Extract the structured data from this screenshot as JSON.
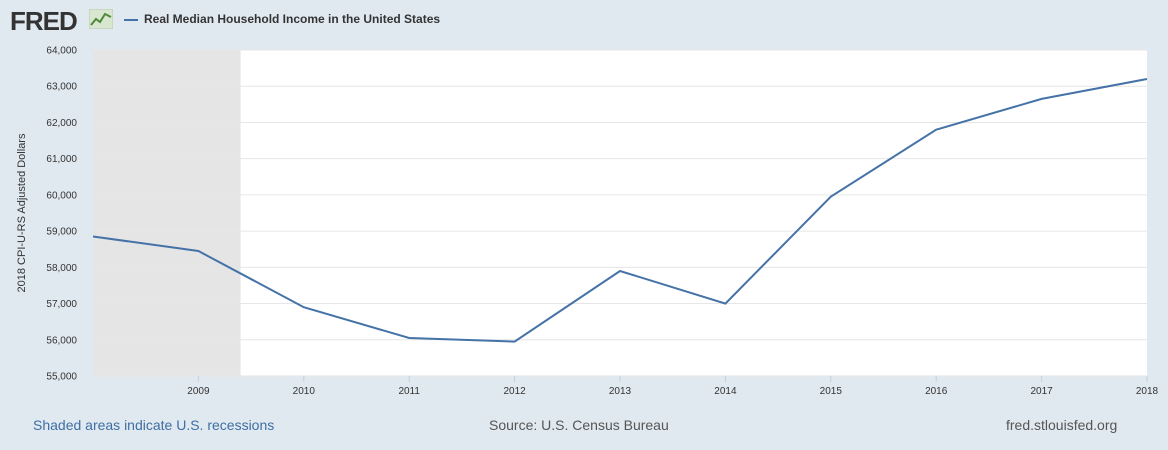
{
  "header": {
    "logo_text": "FRED",
    "legend_label": "Real Median Household Income in the United States"
  },
  "footer": {
    "recession_note": "Shaded areas indicate U.S. recessions",
    "source": "Source: U.S. Census Bureau",
    "site": "fred.stlouisfed.org"
  },
  "colors": {
    "page_background": "#e1e9f0",
    "plot_background": "#ffffff",
    "recession_shade": "#e5e5e5",
    "series_line": "#4572a7",
    "gridline": "#e6e6e6"
  },
  "chart_data": {
    "type": "line",
    "title": "",
    "xlabel": "",
    "ylabel": "2018 CPI-U-RS Adjusted Dollars",
    "xlim": [
      2008,
      2018
    ],
    "ylim": [
      55000,
      64000
    ],
    "grid": true,
    "x_ticks": [
      2009,
      2010,
      2011,
      2012,
      2013,
      2014,
      2015,
      2016,
      2017,
      2018
    ],
    "y_ticks": [
      55000,
      56000,
      57000,
      58000,
      59000,
      60000,
      61000,
      62000,
      63000,
      64000
    ],
    "y_tick_labels": [
      "55,000",
      "56,000",
      "57,000",
      "58,000",
      "59,000",
      "60,000",
      "61,000",
      "62,000",
      "63,000",
      "64,000"
    ],
    "recession_shading": [
      {
        "start": 2008,
        "end": 2009.4
      }
    ],
    "series": [
      {
        "name": "Real Median Household Income in the United States",
        "x": [
          2008,
          2009,
          2010,
          2011,
          2012,
          2013,
          2014,
          2015,
          2016,
          2017,
          2018
        ],
        "y": [
          58850,
          58450,
          56900,
          56050,
          55950,
          57900,
          57000,
          59950,
          61800,
          62650,
          63200
        ]
      }
    ]
  }
}
